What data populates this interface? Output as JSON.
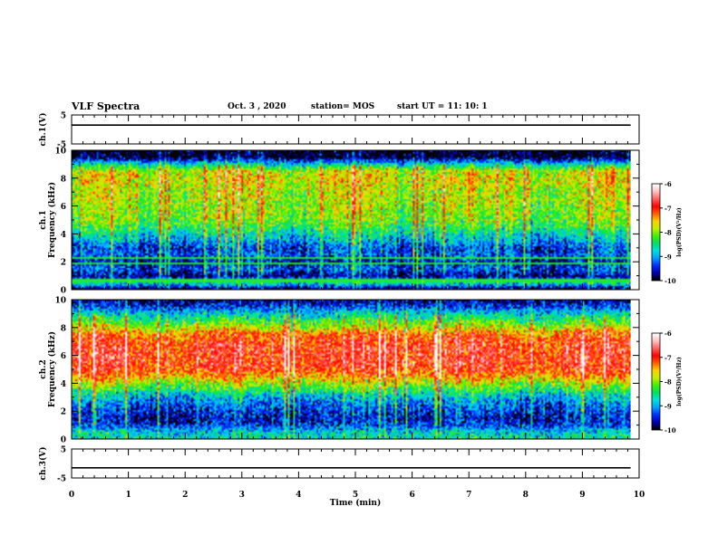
{
  "header": {
    "title": "VLF Spectra",
    "date": "Oct. 3  , 2020",
    "station": "station= MOS",
    "start": "start  UT  =   11: 10: 1"
  },
  "chart_data": [
    {
      "type": "line",
      "name": "ch1-voltage",
      "ylabel": "ch.1(V)",
      "ylim": [
        -5,
        5
      ],
      "yticks": [
        "5",
        "-5"
      ],
      "xlim": [
        0,
        10
      ],
      "series": [
        {
          "x": [
            0,
            9.85
          ],
          "y": [
            1.5,
            1.5
          ]
        }
      ]
    },
    {
      "type": "heatmap",
      "name": "ch1-spectrogram",
      "ylabel": "ch.1 Frequency (kHz)",
      "ylim": [
        0,
        10
      ],
      "yticks": [
        "0",
        "2",
        "4",
        "6",
        "8",
        "10"
      ],
      "xlim": [
        0,
        9.85
      ],
      "profile": {
        "freq_khz": [
          0,
          0.5,
          1,
          1.5,
          2,
          2.5,
          3,
          3.5,
          4,
          4.5,
          5,
          5.5,
          6,
          6.5,
          7,
          7.5,
          8,
          8.5,
          9,
          9.5,
          10
        ],
        "log_psd": [
          -10,
          -8.6,
          -9.8,
          -9.3,
          -9.6,
          -9.3,
          -9.4,
          -9.0,
          -8.7,
          -8.3,
          -8.1,
          -8.0,
          -8.0,
          -7.9,
          -7.9,
          -7.8,
          -7.7,
          -7.8,
          -8.8,
          -10,
          -10
        ]
      }
    },
    {
      "type": "heatmap",
      "name": "ch2-spectrogram",
      "ylabel": "ch.2 Frequency (kHz)",
      "ylim": [
        0,
        10
      ],
      "yticks": [
        "0",
        "2",
        "4",
        "6",
        "8",
        "10"
      ],
      "xlim": [
        0,
        9.85
      ],
      "profile": {
        "freq_khz": [
          0,
          0.5,
          1,
          1.5,
          2,
          2.5,
          3,
          3.5,
          4,
          4.5,
          5,
          5.5,
          6,
          6.5,
          7,
          7.5,
          8,
          8.5,
          9,
          9.5,
          10
        ],
        "log_psd": [
          -8.6,
          -8.8,
          -9.4,
          -9.6,
          -9.4,
          -9.2,
          -8.9,
          -8.4,
          -7.9,
          -7.4,
          -7.0,
          -6.9,
          -6.9,
          -6.9,
          -7.0,
          -7.2,
          -7.8,
          -8.3,
          -8.8,
          -9.4,
          -9.8
        ]
      }
    },
    {
      "type": "line",
      "name": "ch3-voltage",
      "ylabel": "ch.3(V)",
      "ylim": [
        -5,
        5
      ],
      "yticks": [
        "5",
        "-5"
      ],
      "xlabel": "Time  (min)",
      "xlim": [
        0,
        10
      ],
      "xticks": [
        "0",
        "1",
        "2",
        "3",
        "4",
        "5",
        "6",
        "7",
        "8",
        "9",
        "10"
      ],
      "series": [
        {
          "x": [
            0,
            9.85
          ],
          "y": [
            -1.5,
            -1.5
          ]
        }
      ]
    }
  ],
  "colorbar": {
    "label": "log(PSD)(V²/Hz)",
    "range": [
      -10,
      -6
    ],
    "ticks": [
      "-6",
      "-7",
      "-8",
      "-9",
      "-10"
    ],
    "colors": [
      "#000000",
      "#0000b0",
      "#0030ff",
      "#00a0ff",
      "#00e0e0",
      "#00e060",
      "#40f000",
      "#c0f000",
      "#ffd000",
      "#ff6000",
      "#ff0000",
      "#ff6060",
      "#ffc0c0",
      "#ffffff"
    ]
  }
}
